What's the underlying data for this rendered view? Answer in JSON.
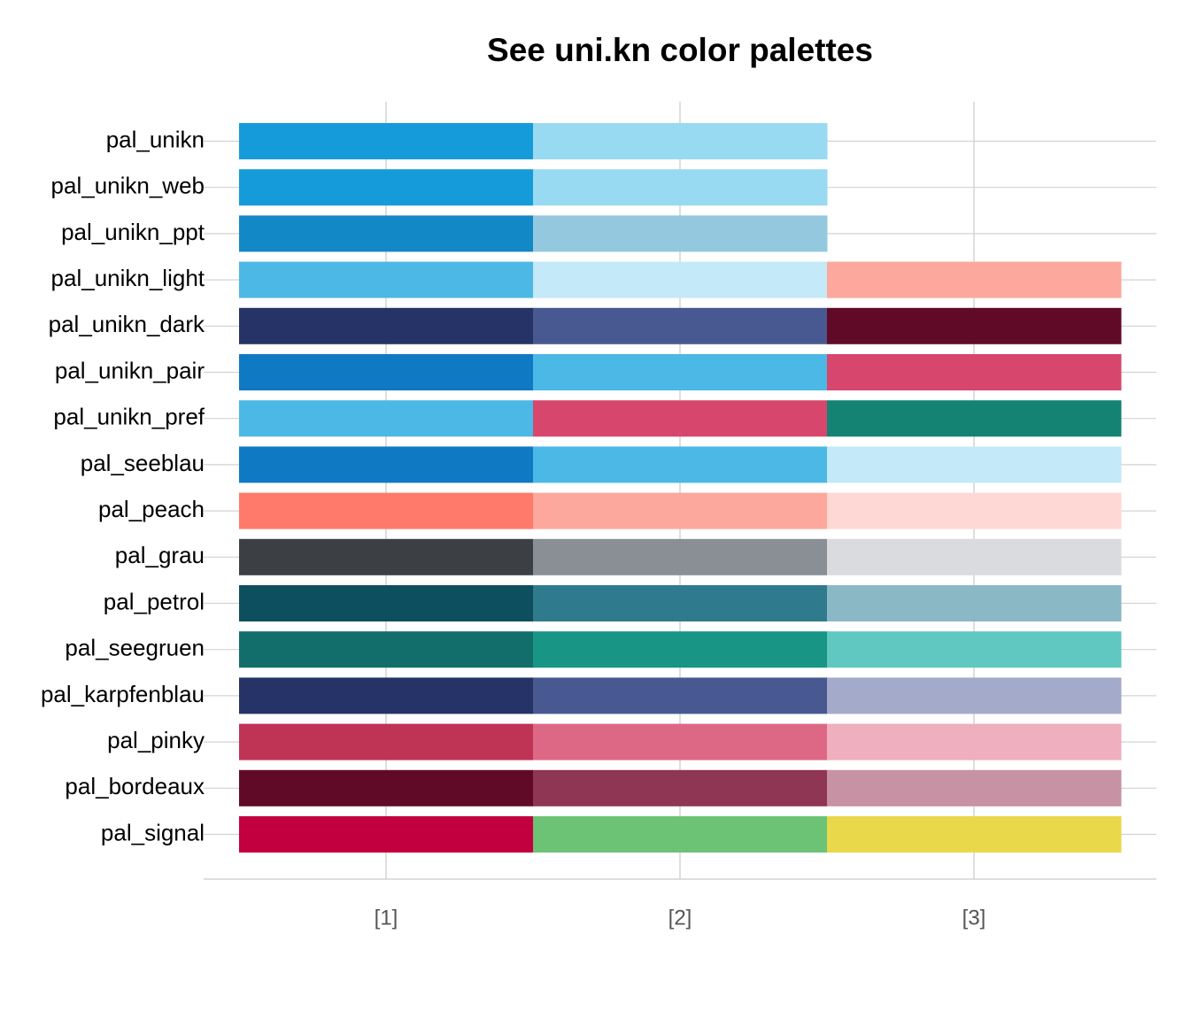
{
  "chart_data": {
    "type": "heatmap",
    "title": "See uni.kn color palettes",
    "xlabel": "",
    "ylabel": "",
    "x_tick_labels": [
      "[1]",
      "[2]",
      "[3]"
    ],
    "grid": true,
    "legend": "none",
    "palettes": [
      {
        "name": "pal_unikn",
        "colors": [
          "#159BD9",
          "#98DAF1"
        ]
      },
      {
        "name": "pal_unikn_web",
        "colors": [
          "#159BD9",
          "#98DAF1"
        ]
      },
      {
        "name": "pal_unikn_ppt",
        "colors": [
          "#1388C6",
          "#93C8DF"
        ]
      },
      {
        "name": "pal_unikn_light",
        "colors": [
          "#4CB8E6",
          "#C4E9F8",
          "#FDA89C"
        ]
      },
      {
        "name": "pal_unikn_dark",
        "colors": [
          "#263366",
          "#485991",
          "#610A28"
        ]
      },
      {
        "name": "pal_unikn_pair",
        "colors": [
          "#1079C4",
          "#4CB8E6",
          "#D7466D"
        ]
      },
      {
        "name": "pal_unikn_pref",
        "colors": [
          "#4CB8E6",
          "#D7466D",
          "#148374"
        ]
      },
      {
        "name": "pal_seeblau",
        "colors": [
          "#1079C4",
          "#4CB8E6",
          "#C4E9F8"
        ]
      },
      {
        "name": "pal_peach",
        "colors": [
          "#FF7A6A",
          "#FDA89C",
          "#FDD8D4"
        ]
      },
      {
        "name": "pal_grau",
        "colors": [
          "#3C3F43",
          "#8A8F96",
          "#DADBDE"
        ]
      },
      {
        "name": "pal_petrol",
        "colors": [
          "#0D4E5F",
          "#2F7B8D",
          "#8BB8C5"
        ]
      },
      {
        "name": "pal_seegruen",
        "colors": [
          "#116E6A",
          "#189585",
          "#61C8C1"
        ]
      },
      {
        "name": "pal_karpfenblau",
        "colors": [
          "#263366",
          "#485991",
          "#A4ABCA"
        ]
      },
      {
        "name": "pal_pinky",
        "colors": [
          "#BF3354",
          "#DD6886",
          "#EFAFBE"
        ]
      },
      {
        "name": "pal_bordeaux",
        "colors": [
          "#610A28",
          "#8E3653",
          "#C792A4"
        ]
      },
      {
        "name": "pal_signal",
        "colors": [
          "#C2003F",
          "#6CC376",
          "#E8D84A"
        ]
      }
    ]
  }
}
